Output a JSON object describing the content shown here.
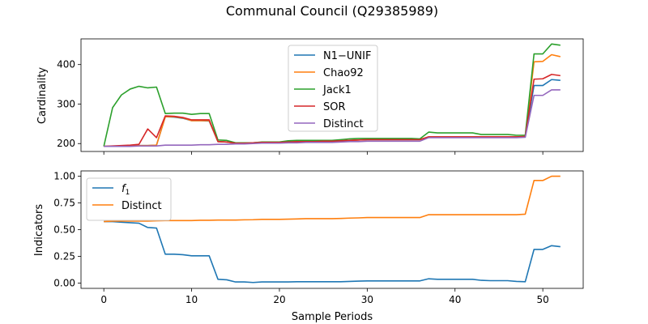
{
  "figure": {
    "title": "Communal Council (Q29385989)"
  },
  "colors": {
    "blue": "#1f77b4",
    "orange": "#ff7f0e",
    "green": "#2ca02c",
    "red": "#d62728",
    "purple": "#9467bd"
  },
  "chart_data": [
    {
      "type": "line",
      "title": "",
      "xlabel": "",
      "ylabel": "Cardinality",
      "xlim": [
        -2.6,
        54.6
      ],
      "ylim": [
        180,
        465
      ],
      "xticks": [
        0,
        10,
        20,
        30,
        40,
        50
      ],
      "xtick_labels_visible": false,
      "yticks": [
        200,
        300,
        400
      ],
      "ytick_labels": [
        "200",
        "300",
        "400"
      ],
      "grid": false,
      "legend": {
        "placement": "upper-center"
      },
      "x": [
        0,
        1,
        2,
        3,
        4,
        5,
        6,
        7,
        8,
        9,
        10,
        11,
        12,
        13,
        14,
        15,
        16,
        17,
        18,
        19,
        20,
        21,
        22,
        23,
        24,
        25,
        26,
        27,
        28,
        29,
        30,
        31,
        32,
        33,
        34,
        35,
        36,
        37,
        38,
        39,
        40,
        41,
        42,
        43,
        44,
        45,
        46,
        47,
        48,
        49,
        50,
        51,
        52
      ],
      "series": [
        {
          "name": "N1−UNIF",
          "color": "#1f77b4",
          "values": [
            193,
            193,
            193,
            194,
            195,
            195,
            196,
            268,
            267,
            264,
            258,
            258,
            257,
            205,
            204,
            201,
            201,
            202,
            203,
            203,
            203,
            204,
            205,
            205,
            205,
            206,
            206,
            207,
            208,
            209,
            210,
            210,
            210,
            210,
            210,
            210,
            210,
            216,
            216,
            216,
            216,
            216,
            216,
            216,
            216,
            216,
            216,
            216,
            217,
            347,
            347,
            362,
            360
          ]
        },
        {
          "name": "Chao92",
          "color": "#ff7f0e",
          "values": [
            193,
            193,
            193,
            194,
            195,
            195,
            196,
            268,
            268,
            265,
            258,
            258,
            258,
            205,
            204,
            201,
            201,
            202,
            203,
            203,
            203,
            204,
            205,
            205,
            205,
            206,
            206,
            207,
            208,
            209,
            210,
            210,
            210,
            210,
            210,
            210,
            210,
            217,
            217,
            217,
            217,
            217,
            217,
            217,
            217,
            217,
            217,
            217,
            218,
            407,
            408,
            425,
            420
          ]
        },
        {
          "name": "Jack1",
          "color": "#2ca02c",
          "values": [
            193,
            291,
            323,
            338,
            345,
            341,
            343,
            276,
            277,
            277,
            274,
            276,
            276,
            209,
            208,
            202,
            202,
            202,
            204,
            204,
            204,
            207,
            208,
            208,
            208,
            208,
            208,
            210,
            212,
            213,
            213,
            213,
            213,
            213,
            213,
            213,
            212,
            229,
            227,
            227,
            227,
            227,
            227,
            223,
            223,
            223,
            223,
            221,
            221,
            427,
            427,
            452,
            449
          ]
        },
        {
          "name": "SOR",
          "color": "#d62728",
          "values": [
            193,
            194,
            195,
            196,
            198,
            237,
            215,
            270,
            269,
            266,
            260,
            260,
            260,
            205,
            204,
            201,
            201,
            202,
            203,
            203,
            203,
            204,
            205,
            205,
            205,
            206,
            206,
            207,
            208,
            209,
            210,
            210,
            210,
            210,
            210,
            210,
            210,
            217,
            217,
            217,
            217,
            217,
            217,
            217,
            217,
            217,
            217,
            217,
            218,
            363,
            364,
            375,
            372
          ]
        },
        {
          "name": "Distinct",
          "color": "#9467bd",
          "values": [
            193,
            193,
            193,
            193,
            194,
            194,
            194,
            196,
            196,
            196,
            196,
            197,
            197,
            198,
            198,
            199,
            199,
            200,
            201,
            201,
            201,
            202,
            202,
            203,
            203,
            203,
            203,
            204,
            205,
            205,
            206,
            206,
            206,
            206,
            206,
            206,
            206,
            215,
            215,
            215,
            215,
            215,
            215,
            215,
            215,
            215,
            215,
            215,
            216,
            322,
            322,
            336,
            336
          ]
        }
      ]
    },
    {
      "type": "line",
      "title": "",
      "xlabel": "Sample Periods",
      "ylabel": "Indicators",
      "xlim": [
        -2.6,
        54.6
      ],
      "ylim": [
        -0.05,
        1.05
      ],
      "xticks": [
        0,
        10,
        20,
        30,
        40,
        50
      ],
      "xtick_labels": [
        "0",
        "10",
        "20",
        "30",
        "40",
        "50"
      ],
      "yticks": [
        0.0,
        0.25,
        0.5,
        0.75,
        1.0
      ],
      "ytick_labels": [
        "0.00",
        "0.25",
        "0.50",
        "0.75",
        "1.00"
      ],
      "grid": false,
      "legend": {
        "placement": "upper-left"
      },
      "x": [
        0,
        1,
        2,
        3,
        4,
        5,
        6,
        7,
        8,
        9,
        10,
        11,
        12,
        13,
        14,
        15,
        16,
        17,
        18,
        19,
        20,
        21,
        22,
        23,
        24,
        25,
        26,
        27,
        28,
        29,
        30,
        31,
        32,
        33,
        34,
        35,
        36,
        37,
        38,
        39,
        40,
        41,
        42,
        43,
        44,
        45,
        46,
        47,
        48,
        49,
        50,
        51,
        52
      ],
      "series": [
        {
          "name": "f",
          "name_subscript": "1",
          "color": "#1f77b4",
          "values": [
            0.575,
            0.575,
            0.57,
            0.565,
            0.56,
            0.52,
            0.515,
            0.27,
            0.27,
            0.265,
            0.255,
            0.255,
            0.255,
            0.035,
            0.03,
            0.01,
            0.01,
            0.005,
            0.01,
            0.01,
            0.01,
            0.01,
            0.012,
            0.012,
            0.012,
            0.012,
            0.012,
            0.012,
            0.015,
            0.018,
            0.02,
            0.02,
            0.02,
            0.02,
            0.02,
            0.02,
            0.02,
            0.04,
            0.035,
            0.035,
            0.035,
            0.035,
            0.035,
            0.025,
            0.022,
            0.022,
            0.022,
            0.015,
            0.012,
            0.315,
            0.315,
            0.35,
            0.34
          ]
        },
        {
          "name": "Distinct",
          "color": "#ff7f0e",
          "values": [
            0.575,
            0.58,
            0.58,
            0.58,
            0.58,
            0.58,
            0.583,
            0.585,
            0.585,
            0.585,
            0.585,
            0.588,
            0.588,
            0.59,
            0.59,
            0.59,
            0.592,
            0.593,
            0.596,
            0.596,
            0.596,
            0.598,
            0.6,
            0.603,
            0.603,
            0.603,
            0.603,
            0.605,
            0.608,
            0.61,
            0.613,
            0.613,
            0.613,
            0.613,
            0.613,
            0.613,
            0.613,
            0.64,
            0.64,
            0.64,
            0.64,
            0.64,
            0.64,
            0.64,
            0.64,
            0.64,
            0.64,
            0.64,
            0.645,
            0.96,
            0.96,
            1.0,
            1.0
          ]
        }
      ]
    }
  ]
}
